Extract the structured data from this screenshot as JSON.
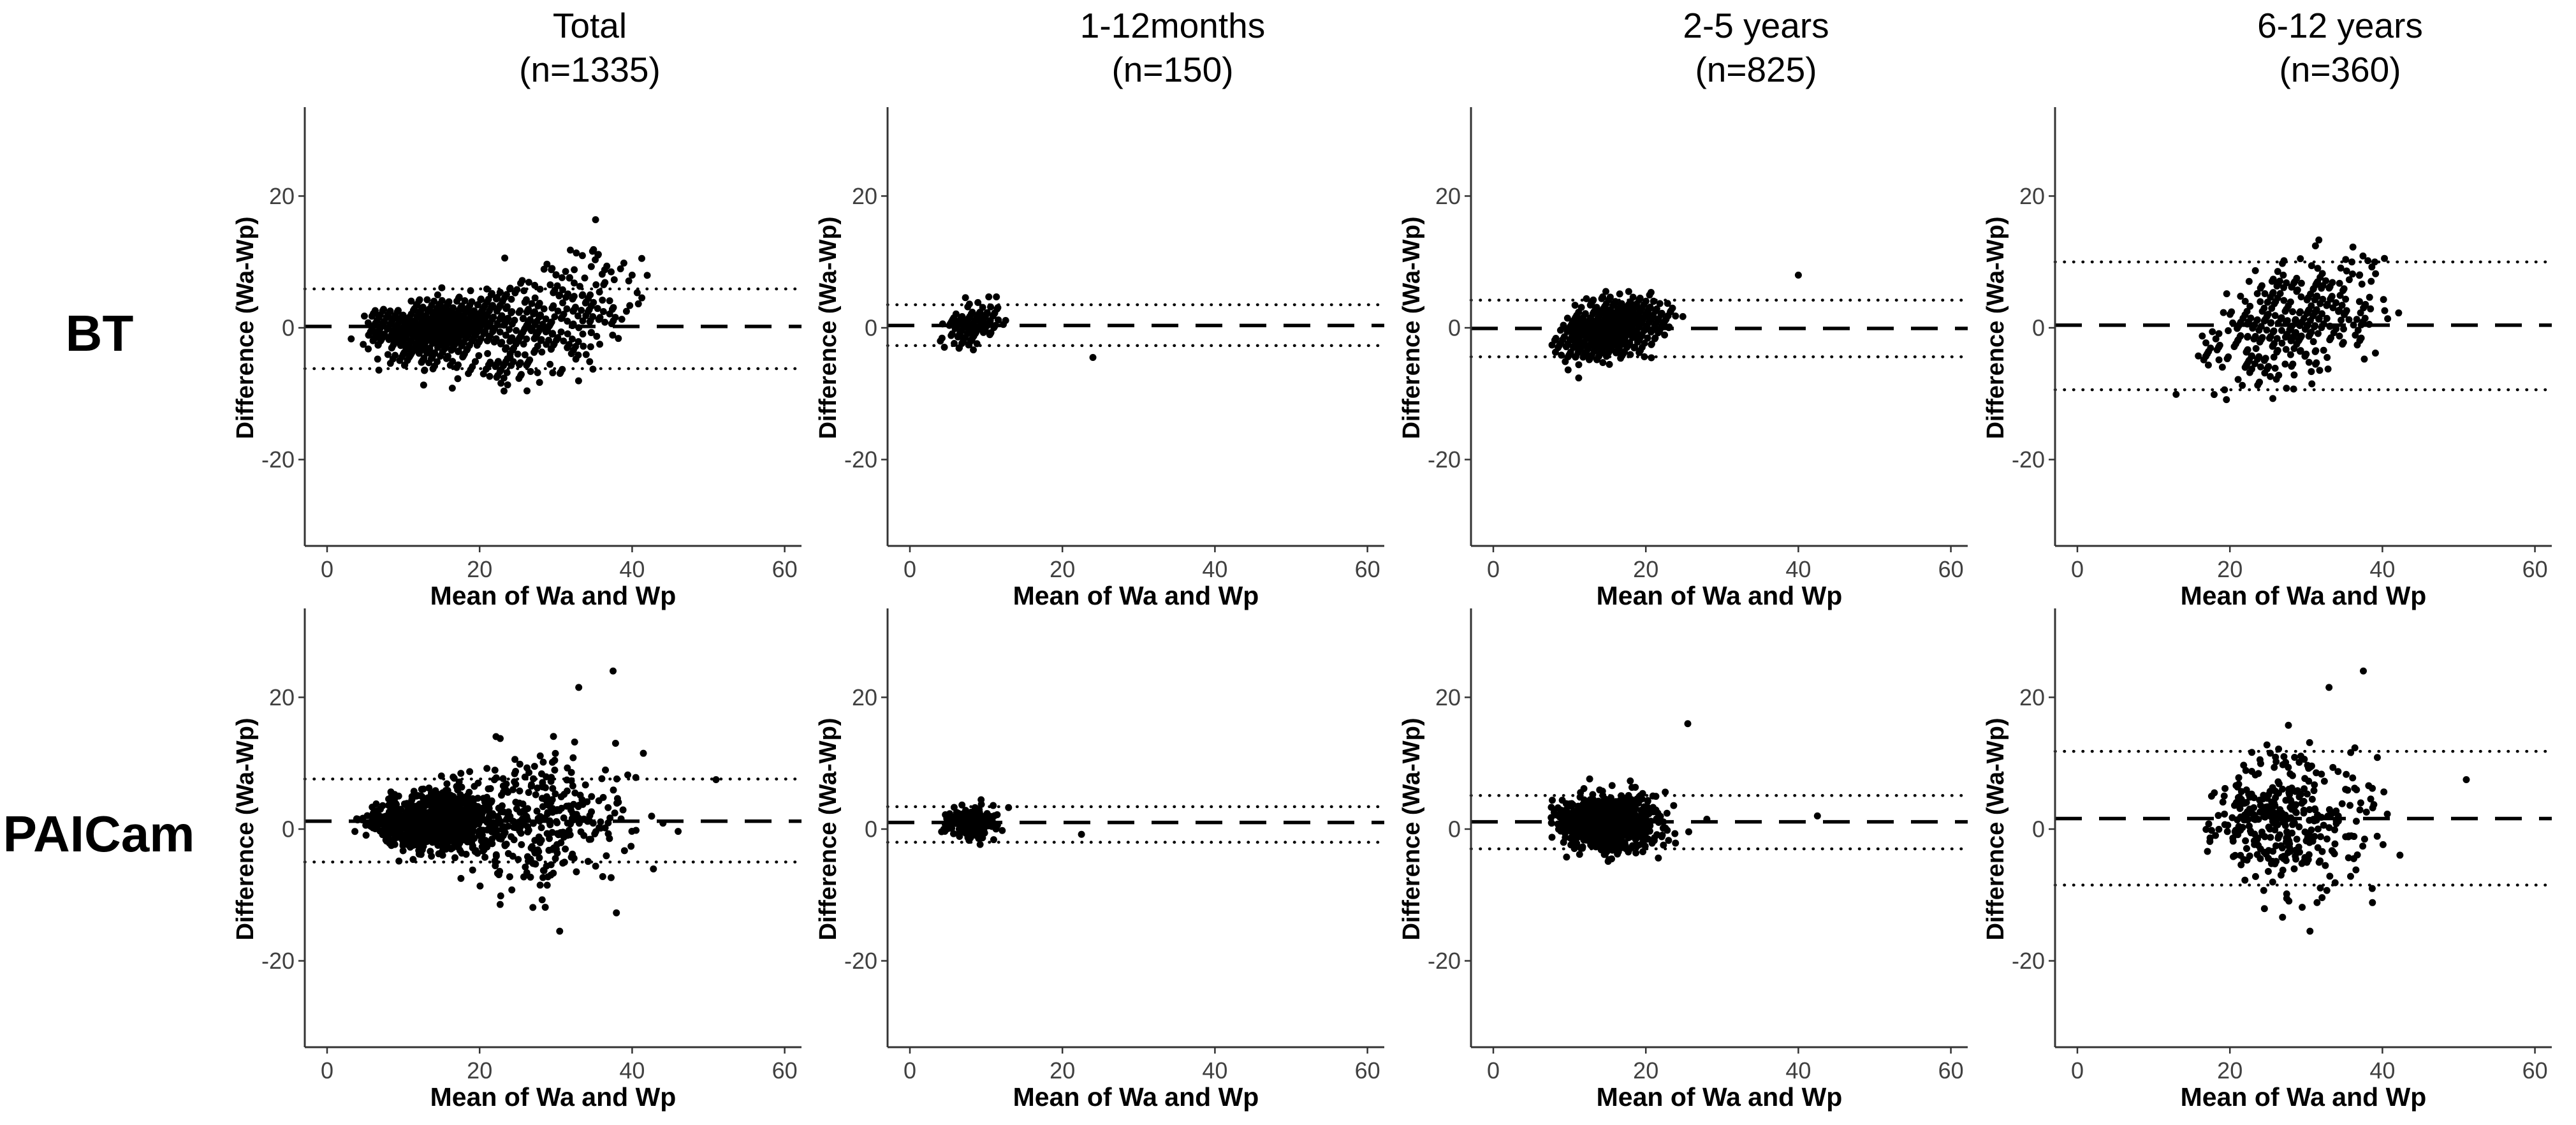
{
  "figure": {
    "background": "#ffffff"
  },
  "rows": [
    {
      "label": "BT"
    },
    {
      "label": "PAICam"
    }
  ],
  "columns": [
    {
      "title": "Total",
      "subtitle": "(n=1335)"
    },
    {
      "title": "1-12months",
      "subtitle": "(n=150)"
    },
    {
      "title": "2-5 years",
      "subtitle": "(n=825)"
    },
    {
      "title": "6-12 years",
      "subtitle": "(n=360)"
    }
  ],
  "axes": {
    "xlabel": "Mean of Wa and Wp",
    "ylabel": "Difference (Wa-Wp)",
    "xticks": [
      0,
      20,
      40,
      60
    ],
    "yticks": [
      20,
      0,
      -20
    ],
    "xlim": [
      -3,
      62.2
    ],
    "ylim": [
      -33.5,
      33.5
    ]
  },
  "style": {
    "point_color": "#000000",
    "line_color": "#000000",
    "axis_color": "#333333",
    "tick_label_color": "#404040",
    "text_color": "#000000"
  },
  "chart_data": [
    {
      "type": "scatter",
      "method": "BT",
      "group": "Total",
      "row": 0,
      "col": 0,
      "n": 1335,
      "bias": 0.2,
      "loa_upper": 5.9,
      "loa_lower": -6.2,
      "seed": 101,
      "striped": true,
      "clusters": [
        {
          "n": 150,
          "wp_mean": 8,
          "wp_sd": 1.7,
          "wp_min": 4,
          "wp_max": 12,
          "d_mean": 0.35,
          "d_sd": 1.5,
          "d_min": -4.6,
          "d_max": 5.2
        },
        {
          "n": 825,
          "wp_mean": 15,
          "wp_sd": 3.2,
          "wp_min": 9,
          "wp_max": 24,
          "d_mean": -0.1,
          "d_sd": 2.1,
          "d_min": -10.5,
          "d_max": 11
        },
        {
          "n": 360,
          "wp_mean": 27,
          "wp_sd": 5.5,
          "wp_min": 17,
          "wp_max": 42,
          "d_mean": 0.4,
          "d_sd": 4.9,
          "d_min": -11,
          "d_max": 20
        }
      ],
      "extra_points": [
        [
          40,
          8
        ],
        [
          24,
          -4.5
        ]
      ]
    },
    {
      "type": "scatter",
      "method": "BT",
      "group": "1-12months",
      "row": 0,
      "col": 1,
      "n": 150,
      "bias": 0.35,
      "loa_upper": 3.5,
      "loa_lower": -2.7,
      "seed": 102,
      "striped": true,
      "clusters": [
        {
          "n": 150,
          "wp_mean": 8,
          "wp_sd": 1.7,
          "wp_min": 4,
          "wp_max": 12,
          "d_mean": 0.35,
          "d_sd": 1.5,
          "d_min": -4.6,
          "d_max": 5.2
        }
      ],
      "extra_points": [
        [
          24,
          -4.5
        ]
      ]
    },
    {
      "type": "scatter",
      "method": "BT",
      "group": "2-5 years",
      "row": 0,
      "col": 2,
      "n": 825,
      "bias": -0.1,
      "loa_upper": 4.2,
      "loa_lower": -4.4,
      "seed": 103,
      "striped": true,
      "clusters": [
        {
          "n": 825,
          "wp_mean": 15,
          "wp_sd": 3.2,
          "wp_min": 9,
          "wp_max": 24,
          "d_mean": -0.1,
          "d_sd": 2.1,
          "d_min": -10.5,
          "d_max": 11
        }
      ],
      "extra_points": [
        [
          40,
          8
        ]
      ]
    },
    {
      "type": "scatter",
      "method": "BT",
      "group": "6-12 years",
      "row": 0,
      "col": 3,
      "n": 360,
      "bias": 0.4,
      "loa_upper": 10.0,
      "loa_lower": -9.4,
      "seed": 104,
      "striped": true,
      "clusters": [
        {
          "n": 360,
          "wp_mean": 27,
          "wp_sd": 5.5,
          "wp_min": 17,
          "wp_max": 42,
          "d_mean": 0.4,
          "d_sd": 4.9,
          "d_min": -11,
          "d_max": 20
        }
      ],
      "extra_points": []
    },
    {
      "type": "scatter",
      "method": "PAICam",
      "group": "Total",
      "row": 1,
      "col": 0,
      "n": 1335,
      "bias": 1.2,
      "loa_upper": 7.6,
      "loa_lower": -5.0,
      "seed": 201,
      "striped": false,
      "clusters": [
        {
          "n": 150,
          "x_mean": 8,
          "x_sd": 1.7,
          "x_min": 3.5,
          "x_max": 13,
          "y_mean": 1.0,
          "y_sd": 1.35,
          "y_min": -3,
          "y_max": 4.6
        },
        {
          "n": 825,
          "x_mean": 15,
          "x_sd": 3.3,
          "x_min": 7.5,
          "x_max": 26,
          "y_mean": 1.1,
          "y_sd": 2.0,
          "y_min": -5.5,
          "y_max": 11
        },
        {
          "n": 360,
          "x_mean": 27,
          "x_sd": 5.8,
          "x_min": 16.5,
          "x_max": 47,
          "y_mean": 1.6,
          "y_sd": 5.0,
          "y_min": -16,
          "y_max": 24.5
        }
      ],
      "extra_points": [
        [
          51,
          7.5
        ],
        [
          37.5,
          24
        ],
        [
          33,
          21.5
        ],
        [
          30.5,
          -15.5
        ]
      ]
    },
    {
      "type": "scatter",
      "method": "PAICam",
      "group": "1-12months",
      "row": 1,
      "col": 1,
      "n": 150,
      "bias": 1.0,
      "loa_upper": 3.4,
      "loa_lower": -2.0,
      "seed": 202,
      "striped": false,
      "clusters": [
        {
          "n": 150,
          "x_mean": 8,
          "x_sd": 1.7,
          "x_min": 3.5,
          "x_max": 13,
          "y_mean": 1.0,
          "y_sd": 1.35,
          "y_min": -3,
          "y_max": 4.6
        }
      ],
      "extra_points": [
        [
          22.5,
          -0.8
        ]
      ]
    },
    {
      "type": "scatter",
      "method": "PAICam",
      "group": "2-5 years",
      "row": 1,
      "col": 2,
      "n": 825,
      "bias": 1.1,
      "loa_upper": 5.1,
      "loa_lower": -3.0,
      "seed": 203,
      "striped": false,
      "clusters": [
        {
          "n": 825,
          "x_mean": 15,
          "x_sd": 3.3,
          "x_min": 7.5,
          "x_max": 26,
          "y_mean": 1.1,
          "y_sd": 2.0,
          "y_min": -5.5,
          "y_max": 11
        }
      ],
      "extra_points": [
        [
          25.5,
          16
        ],
        [
          28,
          1.5
        ],
        [
          42.5,
          2
        ]
      ]
    },
    {
      "type": "scatter",
      "method": "PAICam",
      "group": "6-12 years",
      "row": 1,
      "col": 3,
      "n": 360,
      "bias": 1.6,
      "loa_upper": 11.8,
      "loa_lower": -8.5,
      "seed": 204,
      "striped": false,
      "clusters": [
        {
          "n": 360,
          "x_mean": 27,
          "x_sd": 5.8,
          "x_min": 16.5,
          "x_max": 47,
          "y_mean": 1.6,
          "y_sd": 5.0,
          "y_min": -16,
          "y_max": 24.5
        }
      ],
      "extra_points": [
        [
          51,
          7.5
        ],
        [
          37.5,
          24
        ],
        [
          33,
          21.5
        ],
        [
          30.5,
          -15.5
        ]
      ]
    }
  ]
}
